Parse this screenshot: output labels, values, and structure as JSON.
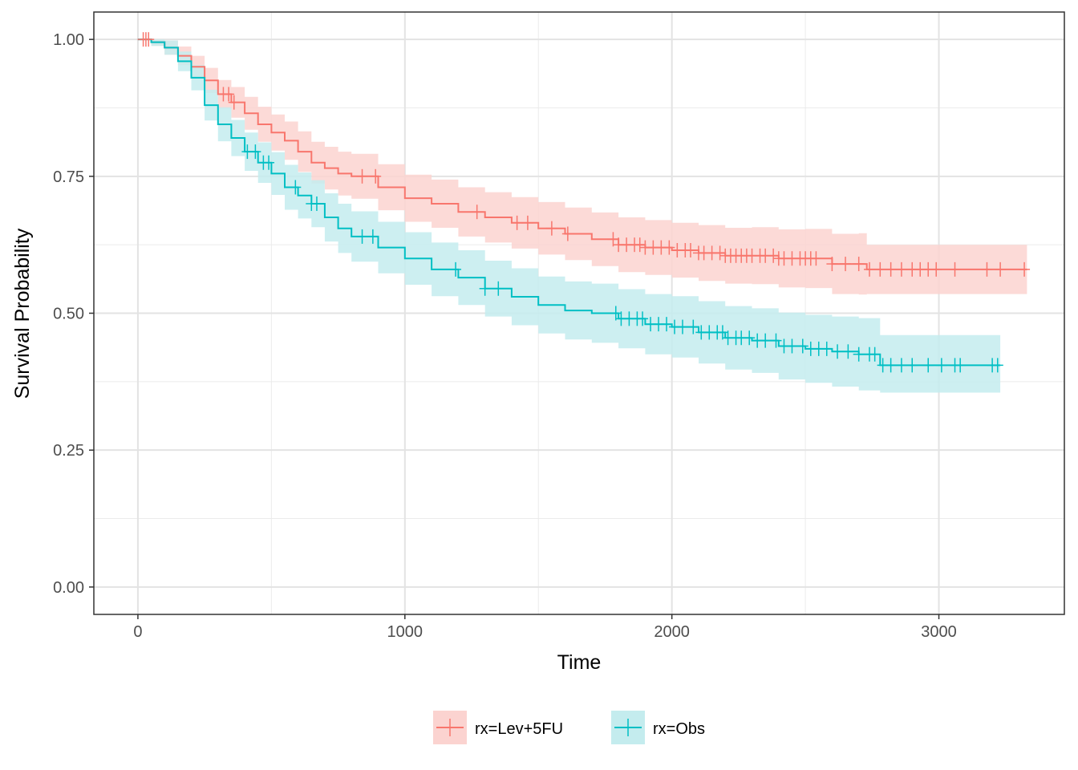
{
  "chart_data": {
    "type": "line",
    "subtype": "kaplan-meier",
    "xlabel": "Time",
    "ylabel": "Survival Probability",
    "xlim": [
      -165,
      3470
    ],
    "ylim": [
      -0.05,
      1.05
    ],
    "x_ticks": [
      0,
      1000,
      2000,
      3000
    ],
    "x_tick_labels": [
      "0",
      "1000",
      "2000",
      "3000"
    ],
    "y_ticks": [
      0,
      0.25,
      0.5,
      0.75,
      1.0
    ],
    "y_tick_labels": [
      "0.00",
      "0.25",
      "0.50",
      "0.75",
      "1.00"
    ],
    "x_minor_ticks": [
      500,
      1500,
      2500
    ],
    "y_minor_ticks": [
      0.125,
      0.375,
      0.625,
      0.875
    ],
    "grid": true,
    "legend_position": "bottom",
    "series": [
      {
        "name": "rx=Lev+5FU",
        "color": "#F8766D",
        "band_color": "#FBD3D0",
        "x": [
          0,
          50,
          100,
          150,
          200,
          250,
          300,
          350,
          400,
          450,
          500,
          550,
          600,
          650,
          700,
          750,
          800,
          900,
          1000,
          1100,
          1200,
          1300,
          1400,
          1500,
          1600,
          1700,
          1800,
          1900,
          2000,
          2100,
          2200,
          2300,
          2400,
          2500,
          2600,
          2700,
          2730,
          2800,
          3000,
          3200,
          3330
        ],
        "y": [
          1.0,
          0.995,
          0.985,
          0.97,
          0.95,
          0.925,
          0.9,
          0.885,
          0.865,
          0.845,
          0.83,
          0.815,
          0.795,
          0.775,
          0.765,
          0.755,
          0.75,
          0.73,
          0.71,
          0.7,
          0.685,
          0.675,
          0.665,
          0.655,
          0.645,
          0.635,
          0.625,
          0.62,
          0.615,
          0.61,
          0.605,
          0.605,
          0.6,
          0.6,
          0.59,
          0.59,
          0.58,
          0.58,
          0.58,
          0.58,
          0.58
        ],
        "lower": [
          1.0,
          0.988,
          0.972,
          0.953,
          0.93,
          0.902,
          0.874,
          0.857,
          0.835,
          0.813,
          0.797,
          0.78,
          0.758,
          0.737,
          0.726,
          0.715,
          0.709,
          0.688,
          0.667,
          0.656,
          0.64,
          0.629,
          0.618,
          0.607,
          0.597,
          0.586,
          0.575,
          0.57,
          0.565,
          0.559,
          0.554,
          0.553,
          0.547,
          0.546,
          0.535,
          0.534,
          0.535,
          0.535,
          0.535,
          0.535,
          0.535
        ],
        "upper": [
          1.0,
          1.0,
          0.998,
          0.987,
          0.97,
          0.948,
          0.926,
          0.913,
          0.895,
          0.877,
          0.863,
          0.85,
          0.832,
          0.813,
          0.804,
          0.795,
          0.791,
          0.772,
          0.753,
          0.744,
          0.73,
          0.721,
          0.712,
          0.703,
          0.693,
          0.684,
          0.675,
          0.67,
          0.665,
          0.661,
          0.656,
          0.657,
          0.653,
          0.654,
          0.645,
          0.646,
          0.625,
          0.625,
          0.625,
          0.625,
          0.625
        ],
        "censored_x": [
          20,
          30,
          40,
          320,
          340,
          360,
          840,
          890,
          1270,
          1420,
          1460,
          1550,
          1610,
          1780,
          1800,
          1830,
          1860,
          1880,
          1900,
          1930,
          1960,
          1990,
          2020,
          2050,
          2070,
          2100,
          2120,
          2150,
          2180,
          2200,
          2220,
          2240,
          2260,
          2280,
          2300,
          2330,
          2350,
          2380,
          2400,
          2420,
          2450,
          2480,
          2500,
          2520,
          2540,
          2600,
          2650,
          2700,
          2740,
          2780,
          2820,
          2860,
          2900,
          2930,
          2960,
          2990,
          3060,
          3180,
          3230,
          3320
        ]
      },
      {
        "name": "rx=Obs",
        "color": "#00BFC4",
        "band_color": "#C4ECEE",
        "x": [
          0,
          50,
          100,
          150,
          200,
          250,
          300,
          350,
          400,
          450,
          500,
          550,
          600,
          650,
          700,
          750,
          800,
          900,
          1000,
          1100,
          1200,
          1300,
          1400,
          1500,
          1600,
          1700,
          1800,
          1900,
          2000,
          2100,
          2200,
          2300,
          2400,
          2500,
          2600,
          2700,
          2780,
          2800,
          3000,
          3200,
          3230
        ],
        "y": [
          1.0,
          0.995,
          0.985,
          0.96,
          0.93,
          0.88,
          0.845,
          0.82,
          0.795,
          0.775,
          0.755,
          0.73,
          0.715,
          0.7,
          0.675,
          0.655,
          0.64,
          0.62,
          0.6,
          0.58,
          0.565,
          0.545,
          0.53,
          0.515,
          0.505,
          0.5,
          0.49,
          0.48,
          0.475,
          0.465,
          0.455,
          0.45,
          0.44,
          0.435,
          0.43,
          0.425,
          0.405,
          0.405,
          0.405,
          0.405,
          0.405
        ],
        "lower": [
          1.0,
          0.988,
          0.972,
          0.942,
          0.907,
          0.852,
          0.814,
          0.787,
          0.76,
          0.738,
          0.716,
          0.689,
          0.673,
          0.657,
          0.631,
          0.61,
          0.594,
          0.573,
          0.552,
          0.531,
          0.515,
          0.494,
          0.478,
          0.463,
          0.452,
          0.446,
          0.436,
          0.425,
          0.419,
          0.408,
          0.397,
          0.391,
          0.379,
          0.373,
          0.366,
          0.359,
          0.355,
          0.355,
          0.355,
          0.355,
          0.355
        ],
        "upper": [
          1.0,
          1.0,
          0.998,
          0.978,
          0.953,
          0.908,
          0.876,
          0.853,
          0.83,
          0.812,
          0.794,
          0.771,
          0.757,
          0.743,
          0.719,
          0.7,
          0.686,
          0.667,
          0.648,
          0.629,
          0.615,
          0.596,
          0.582,
          0.567,
          0.558,
          0.554,
          0.544,
          0.535,
          0.531,
          0.522,
          0.513,
          0.509,
          0.501,
          0.497,
          0.494,
          0.491,
          0.46,
          0.46,
          0.46,
          0.46,
          0.46
        ],
        "censored_x": [
          410,
          440,
          470,
          490,
          590,
          650,
          670,
          840,
          880,
          1190,
          1300,
          1350,
          1790,
          1810,
          1840,
          1870,
          1890,
          1920,
          1950,
          1980,
          2010,
          2040,
          2080,
          2110,
          2140,
          2170,
          2190,
          2210,
          2240,
          2260,
          2290,
          2320,
          2350,
          2390,
          2420,
          2450,
          2490,
          2520,
          2550,
          2580,
          2620,
          2660,
          2700,
          2740,
          2760,
          2790,
          2820,
          2860,
          2900,
          2960,
          3010,
          3060,
          3080,
          3200,
          3220
        ]
      }
    ]
  }
}
